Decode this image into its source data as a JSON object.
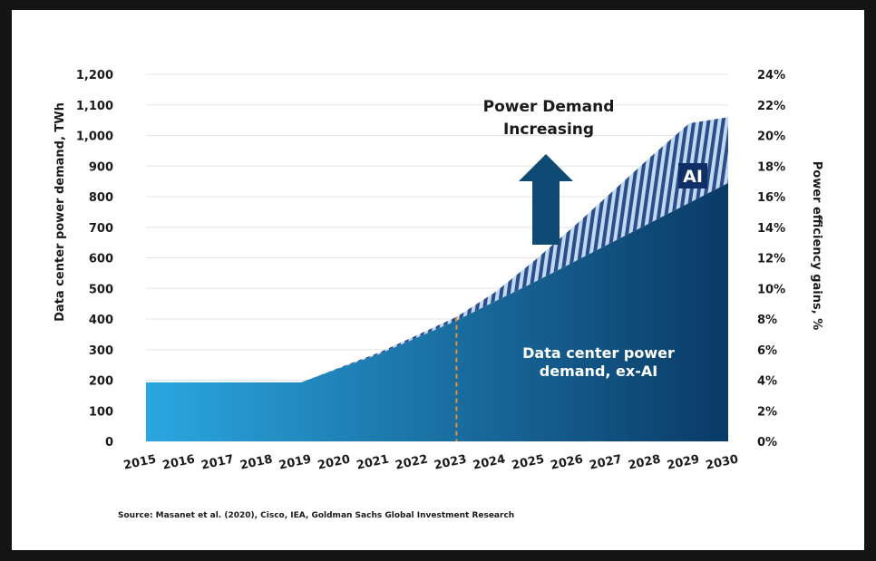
{
  "chart_data": {
    "type": "area",
    "title": "",
    "x": [
      "2015",
      "2016",
      "2017",
      "2018",
      "2019",
      "2020",
      "2021",
      "2022",
      "2023",
      "2024",
      "2025",
      "2026",
      "2027",
      "2028",
      "2029",
      "2030"
    ],
    "series": [
      {
        "name": "Data center power demand, ex-AI",
        "values": [
          193,
          193,
          193,
          193,
          193,
          240,
          285,
          340,
          395,
          458,
          520,
          585,
          650,
          715,
          780,
          845
        ]
      },
      {
        "name": "AI",
        "values": [
          0,
          0,
          0,
          0,
          0,
          2,
          5,
          8,
          12,
          30,
          70,
          115,
          165,
          215,
          260,
          215
        ]
      }
    ],
    "ylabel": "Data center power demand, TWh",
    "ylim": [
      0,
      1200
    ],
    "yticks": [
      "0",
      "100",
      "200",
      "300",
      "400",
      "500",
      "600",
      "700",
      "800",
      "900",
      "1,000",
      "1,100",
      "1,200"
    ],
    "y2label": "Power efficiency gains, %",
    "y2ticks": [
      "0%",
      "2%",
      "4%",
      "6%",
      "8%",
      "10%",
      "12%",
      "14%",
      "16%",
      "18%",
      "20%",
      "22%",
      "24%"
    ],
    "grid": true,
    "forecast_marker_year": "2023",
    "annotations": {
      "arrow_text_line1": "Power Demand",
      "arrow_text_line2": "Increasing",
      "ai_label": "AI",
      "base_label_line1": "Data center power",
      "base_label_line2": "demand, ex-AI"
    },
    "source": "Source: Masanet et al. (2020), Cisco, IEA, Goldman Sachs Global Investment Research",
    "colors": {
      "base_light": "#2aa7e0",
      "base_dark": "#0a3a66",
      "ai_stripe_light": "#bfd9f0",
      "ai_stripe_dark": "#2b4d8a",
      "arrow": "#0e4a73",
      "ai_badge": "#0f2f66",
      "forecast_line": "#e8913a"
    }
  }
}
